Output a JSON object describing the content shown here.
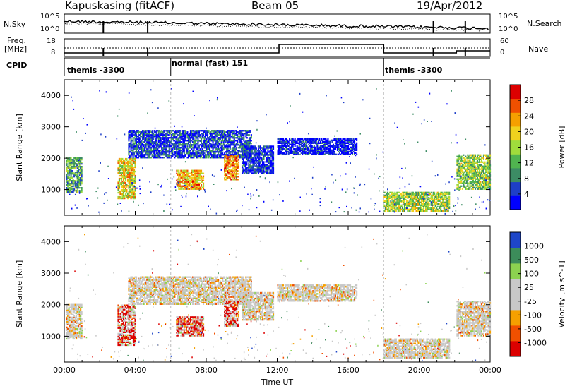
{
  "header": {
    "station": "Kapuskasing (fitACF)",
    "beam": "Beam 05",
    "date": "19/Apr/2012"
  },
  "sky_panel": {
    "left_label": "N.Sky",
    "right_label": "N.Search",
    "left_ticks": [
      "10^5",
      "10^0"
    ],
    "right_ticks": [
      "10^5",
      "10^0"
    ]
  },
  "freq_panel": {
    "left_label_line1": "Freq.",
    "left_label_line2": "[MHz]",
    "right_label": "Nave",
    "left_ticks": [
      "18",
      "8"
    ],
    "right_ticks": [
      "60",
      "0"
    ]
  },
  "cpid_panel": {
    "label": "CPID",
    "modes": [
      {
        "name": "themis -3300",
        "start": 0
      },
      {
        "name": "normal (fast) 151",
        "start": 6
      },
      {
        "name": "themis -3300",
        "start": 18
      }
    ]
  },
  "chart_data": [
    {
      "type": "heatmap",
      "title": "",
      "xlabel": "",
      "ylabel": "Slant Range [km]",
      "colorbar_label": "Power [dB]",
      "colorbar_ticks": [
        "28",
        "24",
        "20",
        "16",
        "12",
        "8",
        "4"
      ],
      "colorbar_colors": [
        "#0000ff",
        "#1e3fc8",
        "#3c8c64",
        "#50b450",
        "#a0dc3c",
        "#f0d21e",
        "#f5a000",
        "#f05000",
        "#dc0000"
      ],
      "xlim": [
        0,
        24
      ],
      "ylim": [
        180,
        4500
      ],
      "yticks": [
        1000,
        2000,
        3000,
        4000
      ],
      "bands": [
        {
          "t0": 0.1,
          "t1": 1.0,
          "r0": 900,
          "r1": 2000,
          "level": 0.35
        },
        {
          "t0": 3.0,
          "t1": 4.0,
          "r0": 700,
          "r1": 2000,
          "level": 0.6
        },
        {
          "t0": 3.6,
          "t1": 10.5,
          "r0": 2000,
          "r1": 2900,
          "level": 0.15
        },
        {
          "t0": 6.3,
          "t1": 7.8,
          "r0": 1000,
          "r1": 1600,
          "level": 0.7
        },
        {
          "t0": 9.0,
          "t1": 9.8,
          "r0": 1300,
          "r1": 2100,
          "level": 0.75
        },
        {
          "t0": 10.0,
          "t1": 11.8,
          "r0": 1500,
          "r1": 2400,
          "level": 0.1
        },
        {
          "t0": 12.0,
          "t1": 16.5,
          "r0": 2100,
          "r1": 2600,
          "level": 0.05
        },
        {
          "t0": 18.0,
          "t1": 21.7,
          "r0": 300,
          "r1": 900,
          "level": 0.5
        },
        {
          "t0": 22.1,
          "t1": 24.0,
          "r0": 1000,
          "r1": 2100,
          "level": 0.45
        }
      ]
    },
    {
      "type": "heatmap",
      "title": "",
      "xlabel": "Time UT",
      "ylabel": "Slant Range [km]",
      "colorbar_label": "Velocity [m s^-1]",
      "colorbar_ticks": [
        "1000",
        "500",
        "100",
        "25",
        "-25",
        "-100",
        "-500",
        "-1000"
      ],
      "colorbar_colors": [
        "#dc0000",
        "#f05000",
        "#f5a000",
        "#c8c8c8",
        "#c8c8c8",
        "#8cd250",
        "#3c8c5a",
        "#1e46c8"
      ],
      "xlim": [
        0,
        24
      ],
      "ylim": [
        180,
        4500
      ],
      "xticks": [
        "00:00",
        "04:00",
        "08:00",
        "12:00",
        "16:00",
        "20:00",
        "00:00"
      ],
      "yticks": [
        1000,
        2000,
        3000,
        4000
      ]
    }
  ]
}
